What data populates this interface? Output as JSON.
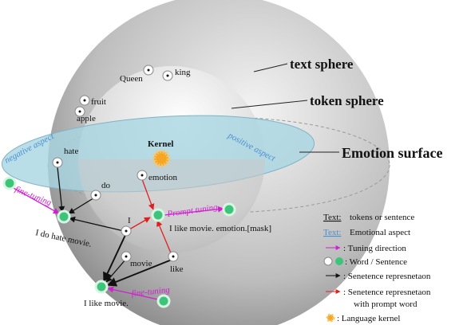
{
  "spheres": {
    "text_sphere": "text sphere",
    "token_sphere": "token sphere",
    "emotion_surface": "Emotion surface"
  },
  "aspects": {
    "negative": "negative aspect",
    "positive": "positive aspect"
  },
  "kernel": "Kernel",
  "words": [
    "Queen",
    "king",
    "fruit",
    "apple",
    "hate",
    "emotion",
    "do",
    "I",
    "movie",
    "like"
  ],
  "tuning": [
    "fine-tuning",
    "Prompt tuning",
    "fine-tuning"
  ],
  "sentences": [
    "I do hate movie.",
    "I like movie. emotion.[mask]",
    "I like movie."
  ],
  "legend": [
    {
      "key": "Text:",
      "label": "tokens or sentence"
    },
    {
      "key": "Text:",
      "label": "Emotional aspect"
    },
    {
      "label": ":  Tuning direction"
    },
    {
      "label": ":  Word / Sentence"
    },
    {
      "label": ":  Senetence represnetaon"
    },
    {
      "label": ":  Senetence represnetaon",
      "continuation": "with prompt word"
    },
    {
      "label": ": Language kernel"
    }
  ]
}
